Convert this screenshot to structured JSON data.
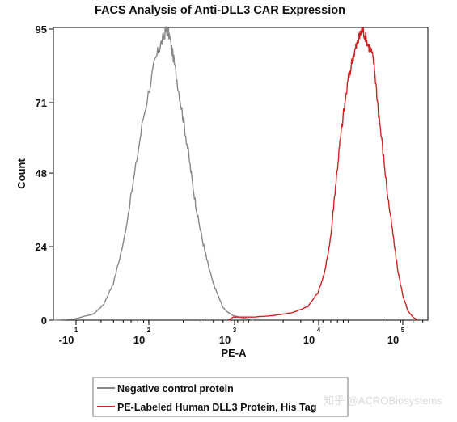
{
  "chart_data": {
    "type": "line",
    "title": "FACS Analysis of Anti-DLL3 CAR Expression",
    "xlabel": "PE-A",
    "ylabel": "Count",
    "x_scale": "log",
    "y_ticks": [
      0,
      24,
      48,
      71,
      95
    ],
    "ylim": [
      0,
      95
    ],
    "x_ticks": [
      {
        "base": "-10",
        "exp": "1",
        "log_value": -1
      },
      {
        "base": "10",
        "exp": "2",
        "log_value": 2
      },
      {
        "base": "10",
        "exp": "3",
        "log_value": 3
      },
      {
        "base": "10",
        "exp": "4",
        "log_value": 4
      },
      {
        "base": "10",
        "exp": "5",
        "log_value": 5
      }
    ],
    "legend_position": "bottom-left",
    "series": [
      {
        "name": "Negative control protein",
        "color": "#888888",
        "points": [
          [
            1.0,
            0
          ],
          [
            1.2,
            0.3
          ],
          [
            1.4,
            2
          ],
          [
            1.5,
            5
          ],
          [
            1.6,
            12
          ],
          [
            1.7,
            25
          ],
          [
            1.8,
            45
          ],
          [
            1.9,
            66
          ],
          [
            2.0,
            82
          ],
          [
            2.05,
            88
          ],
          [
            2.1,
            92
          ],
          [
            2.13,
            95
          ],
          [
            2.16,
            93
          ],
          [
            2.2,
            86
          ],
          [
            2.25,
            76
          ],
          [
            2.3,
            66
          ],
          [
            2.35,
            55
          ],
          [
            2.4,
            43
          ],
          [
            2.45,
            33
          ],
          [
            2.5,
            25
          ],
          [
            2.55,
            18
          ],
          [
            2.6,
            12
          ],
          [
            2.65,
            8
          ],
          [
            2.7,
            4
          ],
          [
            2.75,
            2.5
          ],
          [
            2.8,
            1.5
          ],
          [
            2.9,
            0.7
          ],
          [
            3.0,
            0
          ]
        ]
      },
      {
        "name": "PE-Labeled Human DLL3 Protein, His Tag",
        "color": "#cc2222",
        "points": [
          [
            2.75,
            0
          ],
          [
            2.8,
            1
          ],
          [
            3.0,
            1
          ],
          [
            3.2,
            1.5
          ],
          [
            3.4,
            2.5
          ],
          [
            3.55,
            4.5
          ],
          [
            3.65,
            9
          ],
          [
            3.72,
            16
          ],
          [
            3.78,
            28
          ],
          [
            3.82,
            42
          ],
          [
            3.86,
            55
          ],
          [
            3.9,
            66
          ],
          [
            3.95,
            78
          ],
          [
            4.0,
            86
          ],
          [
            4.03,
            89
          ],
          [
            4.06,
            92
          ],
          [
            4.09,
            95
          ],
          [
            4.12,
            93
          ],
          [
            4.15,
            90
          ],
          [
            4.18,
            88
          ],
          [
            4.21,
            84
          ],
          [
            4.25,
            70
          ],
          [
            4.3,
            55
          ],
          [
            4.35,
            40
          ],
          [
            4.4,
            28
          ],
          [
            4.45,
            16
          ],
          [
            4.5,
            8
          ],
          [
            4.55,
            3
          ],
          [
            4.6,
            1
          ],
          [
            4.65,
            0
          ]
        ]
      }
    ]
  },
  "watermark": "知乎 @ACROBiosystems"
}
